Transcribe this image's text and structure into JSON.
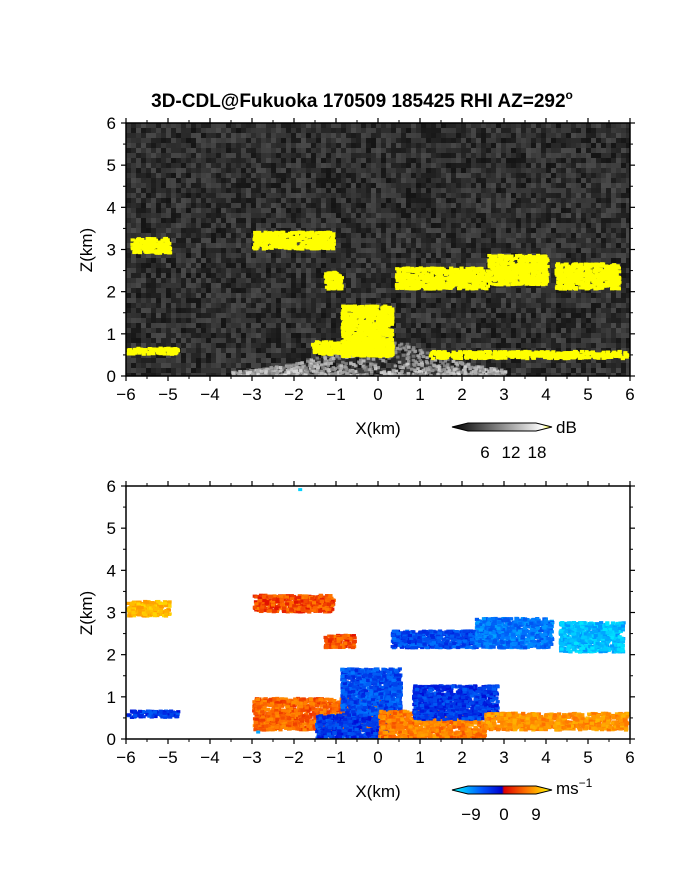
{
  "chart_data": [
    {
      "type": "heatmap",
      "title": "3D-CDL@Fukuoka 170509 185425 RHI AZ=292",
      "title_degree_mark": "o",
      "xlabel": "X(km)",
      "ylabel": "Z(km)",
      "xlim": [
        -6,
        6
      ],
      "ylim": [
        0,
        6
      ],
      "xticks": [
        "-6",
        "-5",
        "-4",
        "-3",
        "-2",
        "-1",
        "0",
        "1",
        "2",
        "3",
        "4",
        "5",
        "6"
      ],
      "yticks": [
        "0",
        "1",
        "2",
        "3",
        "4",
        "5",
        "6"
      ],
      "colorbar": {
        "unit": "dB",
        "ticks": [
          "6",
          "12",
          "18"
        ],
        "range": [
          0,
          21
        ],
        "colors": [
          "#000000",
          "#ffffff",
          "#ffff00"
        ]
      },
      "background": "noise",
      "strong_echo_color": "#ffff00",
      "echo_regions": [
        {
          "x": [
            -5.9,
            -5.0
          ],
          "z": [
            2.95,
            3.3
          ]
        },
        {
          "x": [
            -3.0,
            -1.1
          ],
          "z": [
            3.05,
            3.45
          ]
        },
        {
          "x": [
            -1.3,
            -0.9
          ],
          "z": [
            2.1,
            2.5
          ]
        },
        {
          "x": [
            0.4,
            2.6
          ],
          "z": [
            2.1,
            2.6
          ]
        },
        {
          "x": [
            2.6,
            4.0
          ],
          "z": [
            2.2,
            2.9
          ]
        },
        {
          "x": [
            4.2,
            5.7
          ],
          "z": [
            2.1,
            2.7
          ]
        },
        {
          "x": [
            -0.9,
            0.3
          ],
          "z": [
            0.5,
            1.7
          ]
        },
        {
          "x": [
            -1.6,
            0.3
          ],
          "z": [
            0.55,
            0.85
          ]
        },
        {
          "x": [
            -6.0,
            -4.8
          ],
          "z": [
            0.55,
            0.7
          ]
        },
        {
          "x": [
            1.2,
            5.9
          ],
          "z": [
            0.45,
            0.62
          ]
        }
      ],
      "clear_air": {
        "x": [
          -3.5,
          3.0
        ],
        "z": [
          0,
          1.2
        ],
        "peak_x": 0.0
      }
    },
    {
      "type": "heatmap",
      "title": "",
      "xlabel": "X(km)",
      "ylabel": "Z(km)",
      "xlim": [
        -6,
        6
      ],
      "ylim": [
        0,
        6
      ],
      "xticks": [
        "-6",
        "-5",
        "-4",
        "-3",
        "-2",
        "-1",
        "0",
        "1",
        "2",
        "3",
        "4",
        "5",
        "6"
      ],
      "yticks": [
        "0",
        "1",
        "2",
        "3",
        "4",
        "5",
        "6"
      ],
      "colorbar": {
        "unit": "ms",
        "unit_exponent": "−1",
        "ticks": [
          "−9",
          "0",
          "9"
        ],
        "range": [
          -12,
          12
        ],
        "colors": [
          "#00ffff",
          "#0044ff",
          "#ff0000",
          "#ffaa00",
          "#ffff00"
        ]
      },
      "velocity_regions": [
        {
          "x": [
            -6.0,
            -5.0
          ],
          "z": [
            2.95,
            3.3
          ],
          "v": 8
        },
        {
          "x": [
            -3.0,
            -1.1
          ],
          "z": [
            3.05,
            3.45
          ],
          "v": 3
        },
        {
          "x": [
            -1.3,
            -0.6
          ],
          "z": [
            2.2,
            2.5
          ],
          "v": 3
        },
        {
          "x": [
            0.3,
            2.3
          ],
          "z": [
            2.2,
            2.6
          ],
          "v": -4
        },
        {
          "x": [
            2.3,
            4.1
          ],
          "z": [
            2.2,
            2.9
          ],
          "v": -6
        },
        {
          "x": [
            4.3,
            5.8
          ],
          "z": [
            2.1,
            2.8
          ],
          "v": -9
        },
        {
          "x": [
            -6.0,
            -4.8
          ],
          "z": [
            0.55,
            0.7
          ],
          "v": -3
        },
        {
          "x": [
            -3.0,
            0.3
          ],
          "z": [
            0.25,
            1.0
          ],
          "v": 4
        },
        {
          "x": [
            -1.5,
            0.2
          ],
          "z": [
            0.05,
            0.6
          ],
          "v": -3
        },
        {
          "x": [
            -0.9,
            0.5
          ],
          "z": [
            0.6,
            1.7
          ],
          "v": -4
        },
        {
          "x": [
            0.0,
            2.5
          ],
          "z": [
            0.05,
            0.7
          ],
          "v": 5
        },
        {
          "x": [
            0.8,
            2.8
          ],
          "z": [
            0.5,
            1.3
          ],
          "v": -3
        },
        {
          "x": [
            2.5,
            5.9
          ],
          "z": [
            0.25,
            0.65
          ],
          "v": 6
        }
      ],
      "isolated_gates": [
        {
          "x": -1.9,
          "z": 5.95,
          "v": -10
        },
        {
          "x": -2.9,
          "z": 0.2,
          "v": -8
        }
      ]
    }
  ]
}
